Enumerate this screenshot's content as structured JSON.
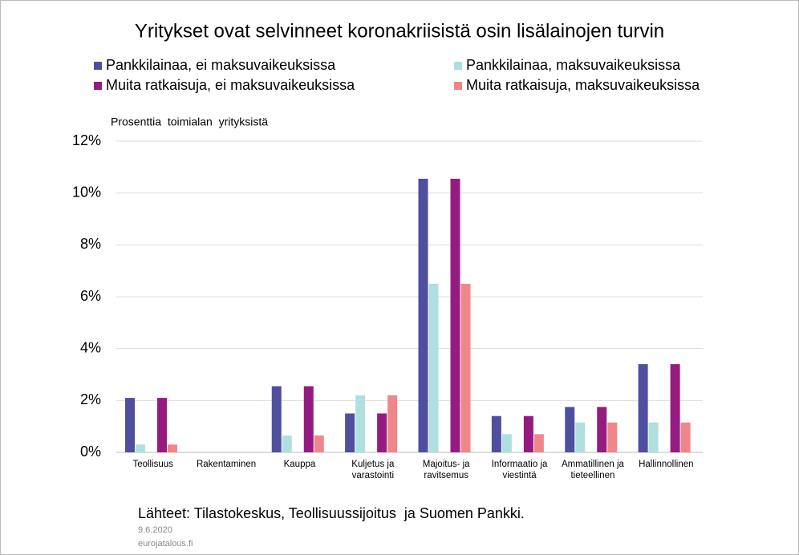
{
  "chart_data": {
    "type": "bar",
    "title": "Yritykset ovat selvinneet koronakriisistä osin lisälainojen turvin",
    "y_label": "Prosenttia  toimialan  yrityksistä",
    "categories": [
      "Teollisuus",
      "Rakentaminen",
      "Kauppa",
      "Kuljetus ja varastointi",
      "Majoitus- ja ravitsemus",
      "Informaatio ja viestintä",
      "Ammatillinen ja tieteellinen",
      "Hallinnollinen"
    ],
    "series": [
      {
        "name": "Pankkilainaa, ei maksuvaikeuksissa",
        "color": "#4f4f9f",
        "values": [
          2.1,
          0,
          2.55,
          1.5,
          10.55,
          1.4,
          1.75,
          3.4
        ]
      },
      {
        "name": "Pankkilainaa, maksuvaikeuksissa",
        "color": "#b0dfe0",
        "values": [
          0.3,
          0,
          0.65,
          2.2,
          6.5,
          0.7,
          1.15,
          1.15
        ]
      },
      {
        "name": "Muita ratkaisuja, ei maksuvaikeuksissa",
        "color": "#951b81",
        "values": [
          2.1,
          0,
          2.55,
          1.5,
          10.55,
          1.4,
          1.75,
          3.4
        ]
      },
      {
        "name": "Muita ratkaisuja, maksuvaikeuksissa",
        "color": "#f0868a",
        "values": [
          0.3,
          0,
          0.65,
          2.2,
          6.5,
          0.7,
          1.15,
          1.15
        ]
      }
    ],
    "ylim": [
      0,
      12
    ],
    "yticks": [
      {
        "value": 0,
        "label": "0%"
      },
      {
        "value": 2,
        "label": "2%"
      },
      {
        "value": 4,
        "label": "4%"
      },
      {
        "value": 6,
        "label": "6%"
      },
      {
        "value": 8,
        "label": "8%"
      },
      {
        "value": 10,
        "label": "10%"
      },
      {
        "value": 12,
        "label": "12%"
      }
    ],
    "grid": true,
    "source": "Lähteet: Tilastokeskus, Teollisuussijoitus  ja Suomen Pankki.",
    "date": "9.6.2020",
    "site": "eurojatalous.fi"
  }
}
